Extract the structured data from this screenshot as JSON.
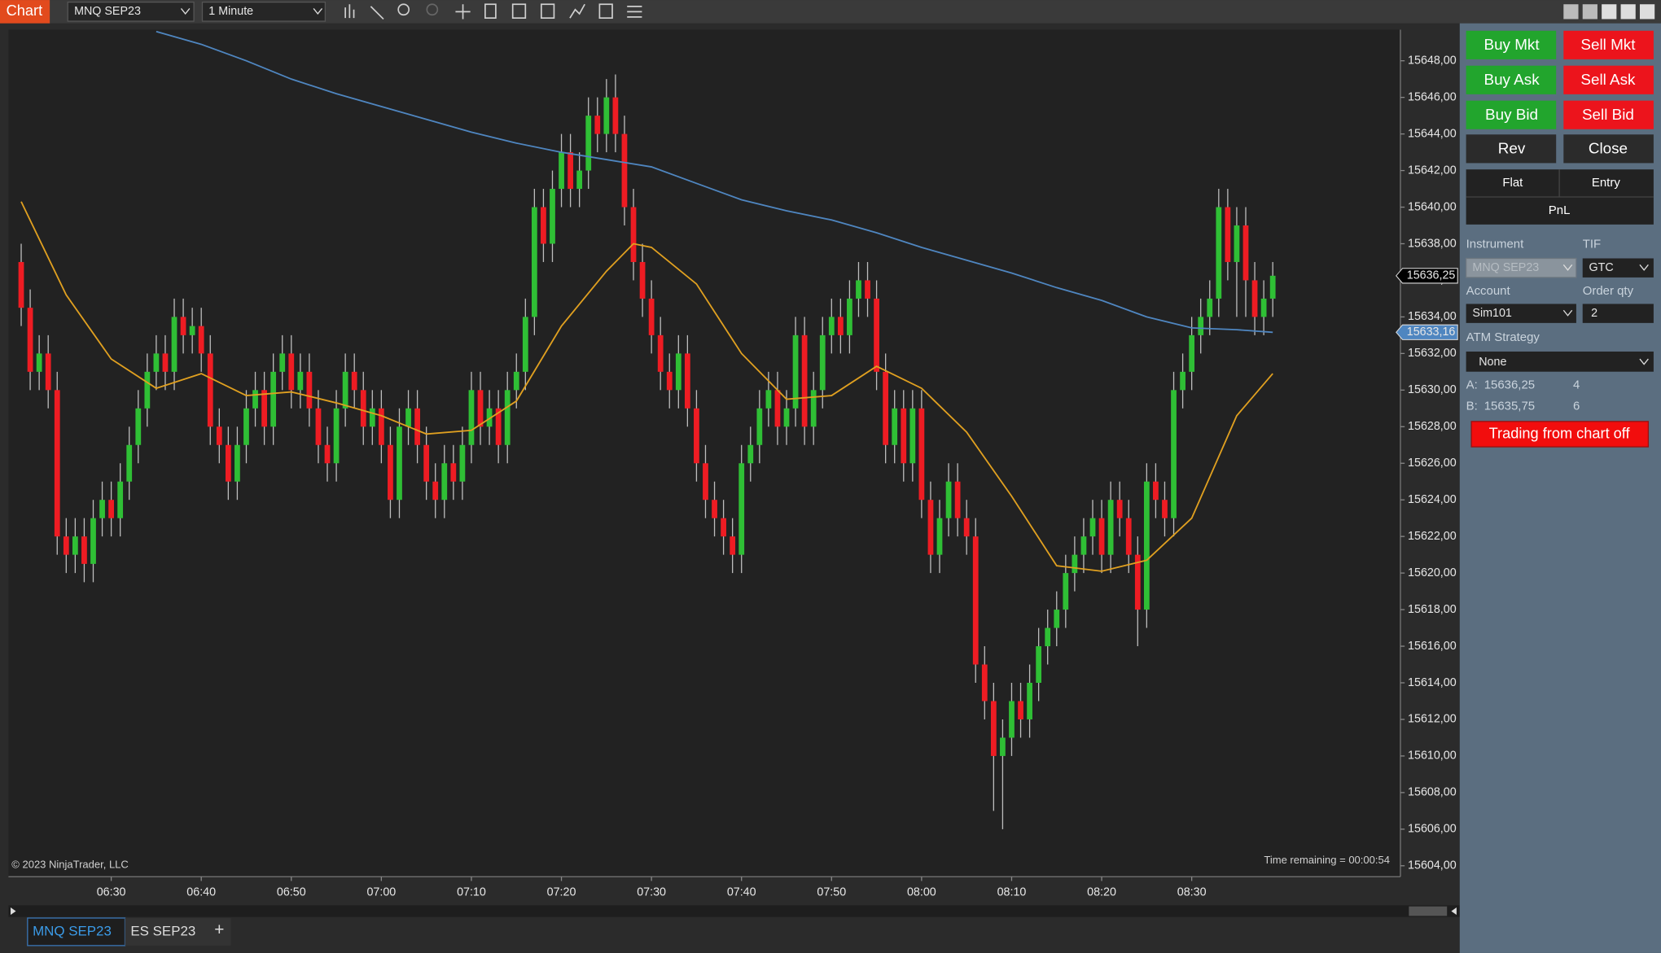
{
  "window": {
    "title": "Chart",
    "instrument": "MNQ SEP23",
    "interval": "1 Minute"
  },
  "chart_data": {
    "type": "candlestick",
    "x": [
      "06:20",
      "06:21",
      "06:22",
      "06:23",
      "06:24",
      "06:25",
      "06:26",
      "06:27",
      "06:28",
      "06:29",
      "06:30",
      "06:31",
      "06:32",
      "06:33",
      "06:34",
      "06:35",
      "06:36",
      "06:37",
      "06:38",
      "06:39",
      "06:40",
      "06:41",
      "06:42",
      "06:43",
      "06:44",
      "06:45",
      "06:46",
      "06:47",
      "06:48",
      "06:49",
      "06:50",
      "06:51",
      "06:52",
      "06:53",
      "06:54",
      "06:55",
      "06:56",
      "06:57",
      "06:58",
      "06:59",
      "07:00",
      "07:01",
      "07:02",
      "07:03",
      "07:04",
      "07:05",
      "07:06",
      "07:07",
      "07:08",
      "07:09",
      "07:10",
      "07:11",
      "07:12",
      "07:13",
      "07:14",
      "07:15",
      "07:16",
      "07:17",
      "07:18",
      "07:19",
      "07:20",
      "07:21",
      "07:22",
      "07:23",
      "07:24",
      "07:25",
      "07:26",
      "07:27",
      "07:28",
      "07:29",
      "07:30",
      "07:31",
      "07:32",
      "07:33",
      "07:34",
      "07:35",
      "07:36",
      "07:37",
      "07:38",
      "07:39",
      "07:40",
      "07:41",
      "07:42",
      "07:43",
      "07:44",
      "07:45",
      "07:46",
      "07:47",
      "07:48",
      "07:49",
      "07:50",
      "07:51",
      "07:52",
      "07:53",
      "07:54",
      "07:55",
      "07:56",
      "07:57",
      "07:58",
      "07:59",
      "08:00",
      "08:01",
      "08:02",
      "08:03",
      "08:04",
      "08:05",
      "08:06",
      "08:07",
      "08:08",
      "08:09",
      "08:10",
      "08:11",
      "08:12",
      "08:13",
      "08:14",
      "08:15",
      "08:16",
      "08:17",
      "08:18",
      "08:19",
      "08:20",
      "08:21",
      "08:22",
      "08:23",
      "08:24",
      "08:25",
      "08:26",
      "08:27",
      "08:28",
      "08:29",
      "08:30",
      "08:31",
      "08:32",
      "08:33",
      "08:34",
      "08:35",
      "08:36",
      "08:37",
      "08:38",
      "08:39"
    ],
    "open": [
      15637,
      15634.5,
      15631,
      15632,
      15630,
      15622,
      15621,
      15622,
      15620.5,
      15623,
      15624,
      15623,
      15625,
      15627,
      15629,
      15631,
      15632,
      15631,
      15634,
      15633,
      15633.5,
      15632,
      15628,
      15627,
      15625,
      15627,
      15629,
      15630,
      15628,
      15631,
      15632,
      15630,
      15631,
      15629,
      15627,
      15626,
      15629,
      15631,
      15630,
      15628,
      15629,
      15627,
      15624,
      15628,
      15629,
      15627,
      15625,
      15624,
      15626,
      15625,
      15627,
      15630,
      15628,
      15629,
      15627,
      15630,
      15631,
      15634,
      15640,
      15638,
      15641,
      15643,
      15641,
      15642,
      15645,
      15644,
      15646,
      15644,
      15640,
      15637,
      15635,
      15633,
      15631,
      15630,
      15632,
      15629,
      15626,
      15624,
      15623,
      15622,
      15621,
      15626,
      15627,
      15629,
      15630,
      15628,
      15629,
      15633,
      15628,
      15630,
      15633,
      15634,
      15633,
      15635,
      15636,
      15635,
      15631,
      15627,
      15629,
      15626,
      15629,
      15624,
      15621,
      15623,
      15625,
      15623,
      15622,
      15615,
      15613,
      15610,
      15611,
      15613,
      15612,
      15614,
      15616,
      15617,
      15618,
      15620,
      15621,
      15622,
      15623,
      15621,
      15624,
      15623,
      15621,
      15618,
      15625,
      15624,
      15623,
      15630,
      15631,
      15633,
      15634,
      15635,
      15640,
      15637,
      15639,
      15636,
      15634,
      15635
    ],
    "high": [
      15638,
      15635.5,
      15633,
      15633,
      15631,
      15623,
      15623,
      15623,
      15624,
      15625,
      15625,
      15626,
      15628,
      15630,
      15632,
      15633,
      15633,
      15635,
      15635,
      15634.5,
      15634.5,
      15633,
      15629,
      15628,
      15628,
      15630,
      15631,
      15631,
      15632,
      15633,
      15633,
      15632,
      15632,
      15630,
      15628,
      15630,
      15632,
      15632,
      15631,
      15630,
      15630,
      15628,
      15629,
      15630,
      15630,
      15628,
      15626,
      15627,
      15627,
      15628,
      15631,
      15631,
      15630,
      15630,
      15631,
      15632,
      15635,
      15641,
      15641,
      15642,
      15644,
      15644,
      15643,
      15646,
      15646,
      15647,
      15647.25,
      15645,
      15641,
      15638,
      15636,
      15634,
      15632,
      15633,
      15633,
      15630,
      15627,
      15625,
      15624,
      15623,
      15627,
      15628,
      15630,
      15631,
      15631,
      15630,
      15634,
      15634,
      15631,
      15634,
      15635,
      15635,
      15636,
      15637,
      15637,
      15636,
      15632,
      15630,
      15630,
      15630,
      15630,
      15625,
      15624,
      15626,
      15626,
      15624,
      15623,
      15616,
      15614,
      15612,
      15614,
      15614,
      15615,
      15617,
      15618,
      15619,
      15621,
      15622,
      15623,
      15624,
      15624,
      15625,
      15625,
      15624,
      15622,
      15626,
      15626,
      15625,
      15631,
      15632,
      15634,
      15635,
      15636,
      15641,
      15641,
      15640,
      15640,
      15637,
      15636,
      15637
    ],
    "low": [
      15633.5,
      15630,
      15630,
      15629,
      15621,
      15620,
      15620,
      15619.5,
      15619.5,
      15622,
      15622,
      15622,
      15624,
      15626,
      15628,
      15630,
      15630,
      15630,
      15632,
      15632,
      15631,
      15627,
      15626,
      15624,
      15624,
      15626,
      15628,
      15627,
      15627,
      15630,
      15629,
      15629,
      15628,
      15626,
      15625,
      15625,
      15628,
      15629,
      15627,
      15627,
      15626,
      15623,
      15623,
      15627,
      15626,
      15624,
      15623,
      15623,
      15624,
      15624,
      15626,
      15627,
      15627,
      15626,
      15626,
      15629,
      15630,
      15633,
      15637,
      15637,
      15640,
      15640,
      15640,
      15641,
      15643,
      15643,
      15643,
      15639,
      15636,
      15634,
      15632,
      15630,
      15629,
      15629,
      15628,
      15625,
      15623,
      15622,
      15621,
      15620,
      15620,
      15625,
      15626,
      15628,
      15627,
      15627,
      15628,
      15627,
      15627,
      15629,
      15632,
      15632,
      15632,
      15634,
      15634,
      15630,
      15626,
      15626,
      15625,
      15625,
      15623,
      15620,
      15620,
      15622,
      15622,
      15621,
      15614,
      15612,
      15607,
      15606,
      15610,
      15611,
      15611,
      15613,
      15615,
      15616,
      15617,
      15619,
      15620,
      15621,
      15620,
      15620,
      15622,
      15620,
      15616,
      15617,
      15623,
      15622,
      15622,
      15629,
      15630,
      15632,
      15633,
      15634,
      15636,
      15634,
      15634,
      15633,
      15633,
      15634
    ],
    "close": [
      15634.5,
      15631,
      15632,
      15630,
      15622,
      15621,
      15622,
      15620.5,
      15623,
      15624,
      15623,
      15625,
      15627,
      15629,
      15631,
      15632,
      15631,
      15634,
      15633,
      15633.5,
      15632,
      15628,
      15627,
      15625,
      15627,
      15629,
      15630,
      15628,
      15631,
      15632,
      15630,
      15631,
      15629,
      15627,
      15626,
      15629,
      15631,
      15630,
      15628,
      15629,
      15627,
      15624,
      15628,
      15629,
      15627,
      15625,
      15624,
      15626,
      15625,
      15627,
      15630,
      15628,
      15629,
      15627,
      15630,
      15631,
      15634,
      15640,
      15638,
      15641,
      15643,
      15641,
      15642,
      15645,
      15644,
      15646,
      15644,
      15640,
      15637,
      15635,
      15633,
      15631,
      15630,
      15632,
      15629,
      15626,
      15624,
      15623,
      15622,
      15621,
      15626,
      15627,
      15629,
      15630,
      15628,
      15629,
      15633,
      15628,
      15630,
      15633,
      15634,
      15633,
      15635,
      15636,
      15635,
      15631,
      15627,
      15629,
      15626,
      15629,
      15624,
      15621,
      15623,
      15625,
      15623,
      15622,
      15615,
      15613,
      15610,
      15611,
      15613,
      15612,
      15614,
      15616,
      15617,
      15618,
      15620,
      15621,
      15622,
      15623,
      15621,
      15624,
      15623,
      15621,
      15618,
      15625,
      15624,
      15623,
      15630,
      15631,
      15633,
      15634,
      15635,
      15640,
      15637,
      15639,
      15636,
      15634,
      15635,
      15636.25
    ],
    "up_color": "#2fbf35",
    "down_color": "#ee1c23",
    "wick_color": "#bdbdbd",
    "overlays": [
      {
        "color": "#4f86c0",
        "x": [
          "06:35",
          "06:40",
          "06:45",
          "06:50",
          "06:55",
          "07:00",
          "07:05",
          "07:10",
          "07:15",
          "07:20",
          "07:25",
          "07:30",
          "07:35",
          "07:40",
          "07:45",
          "07:50",
          "07:55",
          "08:00",
          "08:05",
          "08:10",
          "08:15",
          "08:20",
          "08:25",
          "08:30",
          "08:35",
          "08:39"
        ],
        "values": [
          15649.6,
          15648.9,
          15648.0,
          15647.0,
          15646.2,
          15645.5,
          15644.8,
          15644.1,
          15643.5,
          15643.0,
          15642.6,
          15642.2,
          15641.3,
          15640.4,
          15639.8,
          15639.3,
          15638.6,
          15637.8,
          15637.1,
          15636.4,
          15635.6,
          15634.9,
          15634.0,
          15633.4,
          15633.3,
          15633.16
        ]
      },
      {
        "color": "#e0a020",
        "x": [
          "06:20",
          "06:25",
          "06:30",
          "06:35",
          "06:40",
          "06:45",
          "06:50",
          "06:55",
          "07:00",
          "07:05",
          "07:10",
          "07:15",
          "07:20",
          "07:25",
          "07:28",
          "07:30",
          "07:35",
          "07:40",
          "07:45",
          "07:50",
          "07:55",
          "08:00",
          "08:05",
          "08:10",
          "08:15",
          "08:20",
          "08:25",
          "08:30",
          "08:35",
          "08:39"
        ],
        "values": [
          15640.3,
          15635.2,
          15631.7,
          15630.1,
          15630.9,
          15629.7,
          15629.9,
          15629.3,
          15628.6,
          15627.6,
          15627.8,
          15629.4,
          15633.5,
          15636.5,
          15638.0,
          15637.8,
          15635.8,
          15632.0,
          15629.5,
          15629.7,
          15631.3,
          15630.1,
          15627.7,
          15624.2,
          15620.4,
          15620.1,
          15620.7,
          15623.0,
          15628.6,
          15630.9
        ]
      }
    ],
    "price_markers": [
      {
        "value": 15636.25,
        "label": "15636,25",
        "color": "#000000"
      },
      {
        "value": 15633.16,
        "label": "15633,16",
        "color": "#4f86c0"
      }
    ],
    "ylim": [
      15603.4,
      15649.7
    ],
    "yticks": [
      {
        "value": 15604,
        "label": "15604,00"
      },
      {
        "value": 15606,
        "label": "15606,00"
      },
      {
        "value": 15608,
        "label": "15608,00"
      },
      {
        "value": 15610,
        "label": "15610,00"
      },
      {
        "value": 15612,
        "label": "15612,00"
      },
      {
        "value": 15614,
        "label": "15614,00"
      },
      {
        "value": 15616,
        "label": "15616,00"
      },
      {
        "value": 15618,
        "label": "15618,00"
      },
      {
        "value": 15620,
        "label": "15620,00"
      },
      {
        "value": 15622,
        "label": "15622,00"
      },
      {
        "value": 15624,
        "label": "15624,00"
      },
      {
        "value": 15626,
        "label": "15626,00"
      },
      {
        "value": 15628,
        "label": "15628,00"
      },
      {
        "value": 15630,
        "label": "15630,00"
      },
      {
        "value": 15632,
        "label": "15632,00"
      },
      {
        "value": 15634,
        "label": "15634,00"
      },
      {
        "value": 15636,
        "label": "15636,00"
      },
      {
        "value": 15638,
        "label": "15638,00"
      },
      {
        "value": 15640,
        "label": "15640,00"
      },
      {
        "value": 15642,
        "label": "15642,00"
      },
      {
        "value": 15644,
        "label": "15644,00"
      },
      {
        "value": 15646,
        "label": "15646,00"
      },
      {
        "value": 15648,
        "label": "15648,00"
      }
    ],
    "xticks": [
      "06:30",
      "06:40",
      "06:50",
      "07:00",
      "07:10",
      "07:20",
      "07:30",
      "07:40",
      "07:50",
      "08:00",
      "08:10",
      "08:20",
      "08:30"
    ],
    "copyright": "© 2023 NinjaTrader, LLC",
    "time_remaining": "Time remaining = 00:00:54"
  },
  "tabs": [
    "MNQ SEP23",
    "ES SEP23",
    "+"
  ],
  "order_panel": {
    "buy_mkt": "Buy Mkt",
    "sell_mkt": "Sell Mkt",
    "buy_ask": "Buy Ask",
    "sell_ask": "Sell Ask",
    "buy_bid": "Buy Bid",
    "sell_bid": "Sell Bid",
    "rev": "Rev",
    "close": "Close",
    "flat": "Flat",
    "entry": "Entry",
    "pnl": "PnL",
    "instrument_label": "Instrument",
    "instrument": "MNQ SEP23",
    "tif_label": "TIF",
    "tif": "GTC",
    "account_label": "Account",
    "account": "Sim101",
    "qty_label": "Order qty",
    "qty": 2,
    "atm_label": "ATM Strategy",
    "atm": "None",
    "ask_label": "A:",
    "ask_price": "15636,25",
    "ask_size": 4,
    "bid_label": "B:",
    "bid_price": "15635,75",
    "bid_size": 6,
    "chart_trading": "Trading from chart off"
  }
}
